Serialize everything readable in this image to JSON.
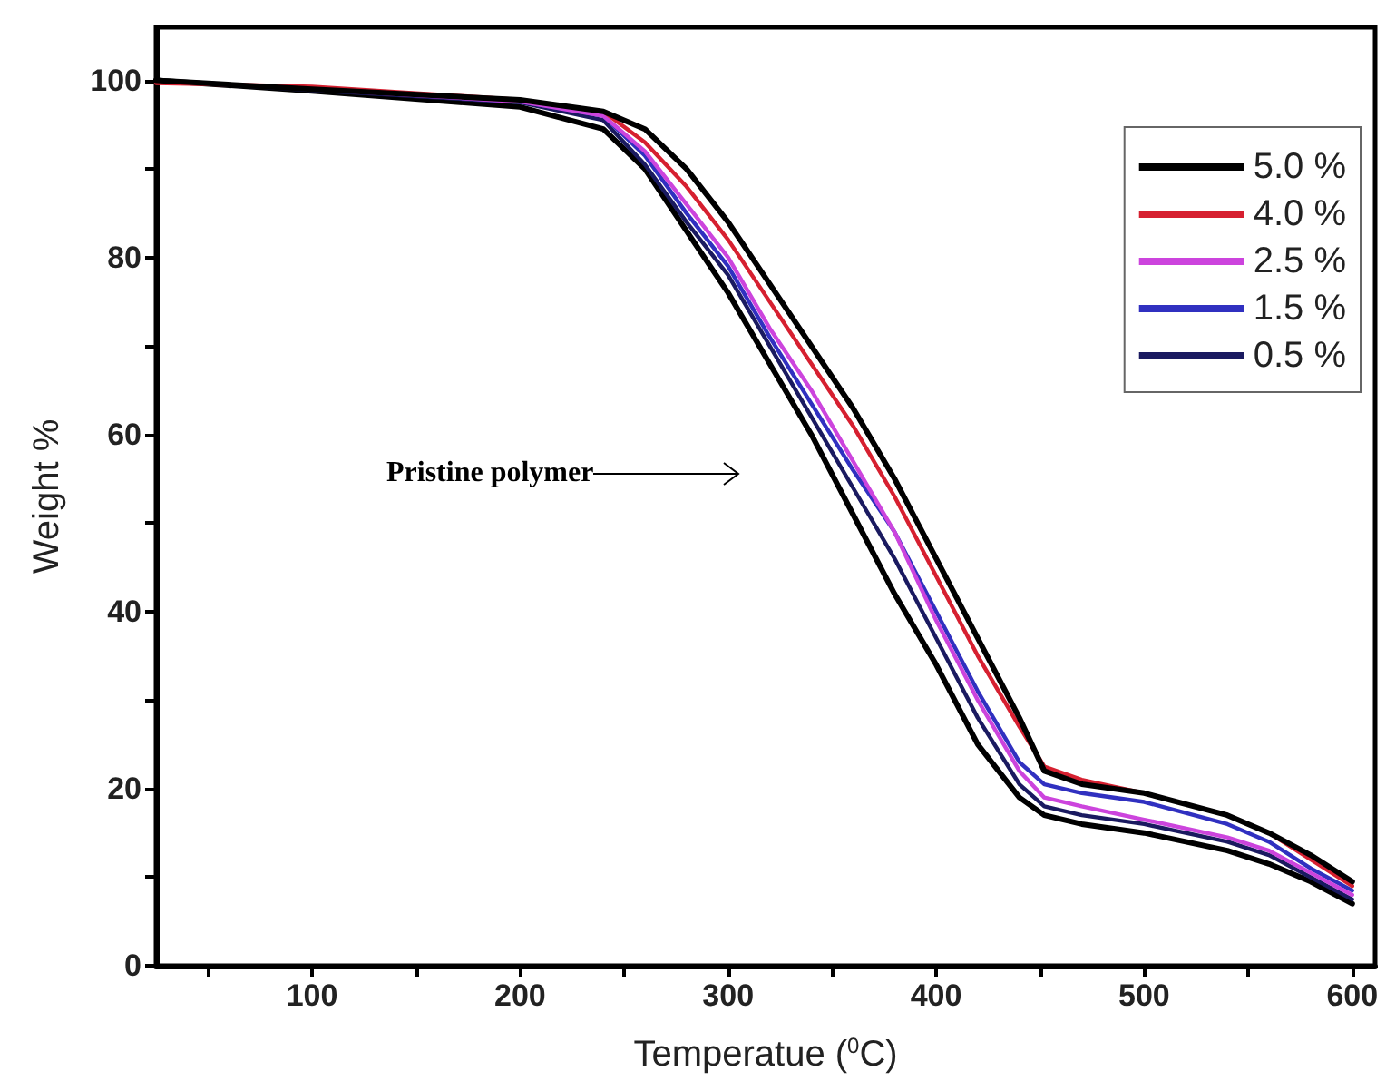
{
  "chart_data": {
    "type": "line",
    "xlabel": "Temperatue ($^{0}$C)",
    "ylabel": "Weight %",
    "xlim": [
      25,
      611
    ],
    "ylim": [
      0,
      106
    ],
    "xticks": [
      {
        "value": 50,
        "label": null
      },
      100,
      {
        "value": 150,
        "label": null
      },
      200,
      {
        "value": 250,
        "label": null
      },
      300,
      {
        "value": 350,
        "label": null
      },
      400,
      {
        "value": 450,
        "label": null
      },
      500,
      {
        "value": 550,
        "label": null
      },
      600
    ],
    "yticks": [
      0,
      {
        "value": 10,
        "label": null
      },
      20,
      {
        "value": 30,
        "label": null
      },
      40,
      {
        "value": 50,
        "label": null
      },
      60,
      {
        "value": 70,
        "label": null
      },
      80,
      {
        "value": 90,
        "label": null
      },
      100
    ],
    "grid": false,
    "legend": "top right",
    "marker": "none",
    "line_style": "solid",
    "x": [
      25,
      100,
      200,
      240,
      260,
      280,
      300,
      320,
      340,
      360,
      380,
      400,
      420,
      440,
      452,
      470,
      500,
      540,
      560,
      580,
      600
    ],
    "series": [
      {
        "name": "5.0 %",
        "color": "#000000",
        "values": [
          100,
          99.0,
          97.8,
          96.5,
          94.5,
          90,
          84,
          77,
          70,
          63,
          55,
          46,
          37,
          28,
          22,
          20.5,
          19.5,
          17,
          15,
          12.5,
          9.5
        ]
      },
      {
        "name": "4.0 %",
        "color": "#d62030",
        "values": [
          99.7,
          99.3,
          97.8,
          96.5,
          93,
          88,
          82,
          75,
          68,
          61,
          53,
          44,
          35,
          27,
          22.5,
          21,
          19.5,
          17,
          15,
          12,
          9
        ]
      },
      {
        "name": "2.5 %",
        "color": "#cc44dd",
        "values": [
          100,
          99.0,
          97.6,
          96,
          92,
          86,
          80,
          72,
          65,
          57,
          49,
          39,
          30,
          22,
          19,
          18,
          16.5,
          14.5,
          13,
          10.5,
          8
        ]
      },
      {
        "name": "1.5 %",
        "color": "#3030c0",
        "values": [
          100,
          99.0,
          97.6,
          96,
          91.5,
          85,
          79,
          71,
          63.5,
          56,
          49,
          40,
          31,
          23,
          20.5,
          19.5,
          18.5,
          16,
          14,
          11,
          8.5
        ]
      },
      {
        "name": "0.5 %",
        "color": "#1a1a60",
        "values": [
          100,
          98.9,
          97.5,
          95.5,
          90.5,
          84,
          78,
          70,
          62,
          54,
          46,
          37,
          28,
          20.5,
          18,
          17,
          16,
          14,
          12.5,
          10,
          7.5
        ]
      },
      {
        "color": "#000000",
        "values": [
          100,
          98.8,
          97,
          94.5,
          90,
          83,
          76,
          68,
          60,
          51,
          42,
          34,
          25,
          19,
          17,
          16,
          15,
          13,
          11.5,
          9.5,
          7
        ]
      }
    ],
    "annotations": [
      "Pristine polymer"
    ]
  }
}
